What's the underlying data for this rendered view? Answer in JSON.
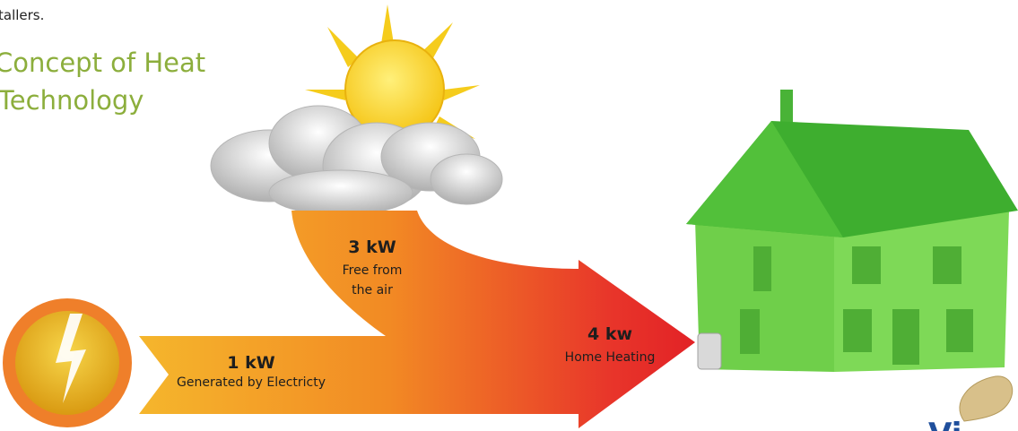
{
  "header": {
    "intro_fragment": "tallers.",
    "title_lines": [
      "Concept of Heat",
      "Technology"
    ]
  },
  "labels": {
    "air": {
      "amount": "3 kW",
      "lines": [
        "Free from",
        "the air"
      ]
    },
    "electricity": {
      "amount": "1 kW",
      "text": "Generated by Electricty"
    },
    "output": {
      "amount": "4 kw",
      "text": "Home Heating"
    }
  },
  "logo": {
    "text": "Vi"
  }
}
